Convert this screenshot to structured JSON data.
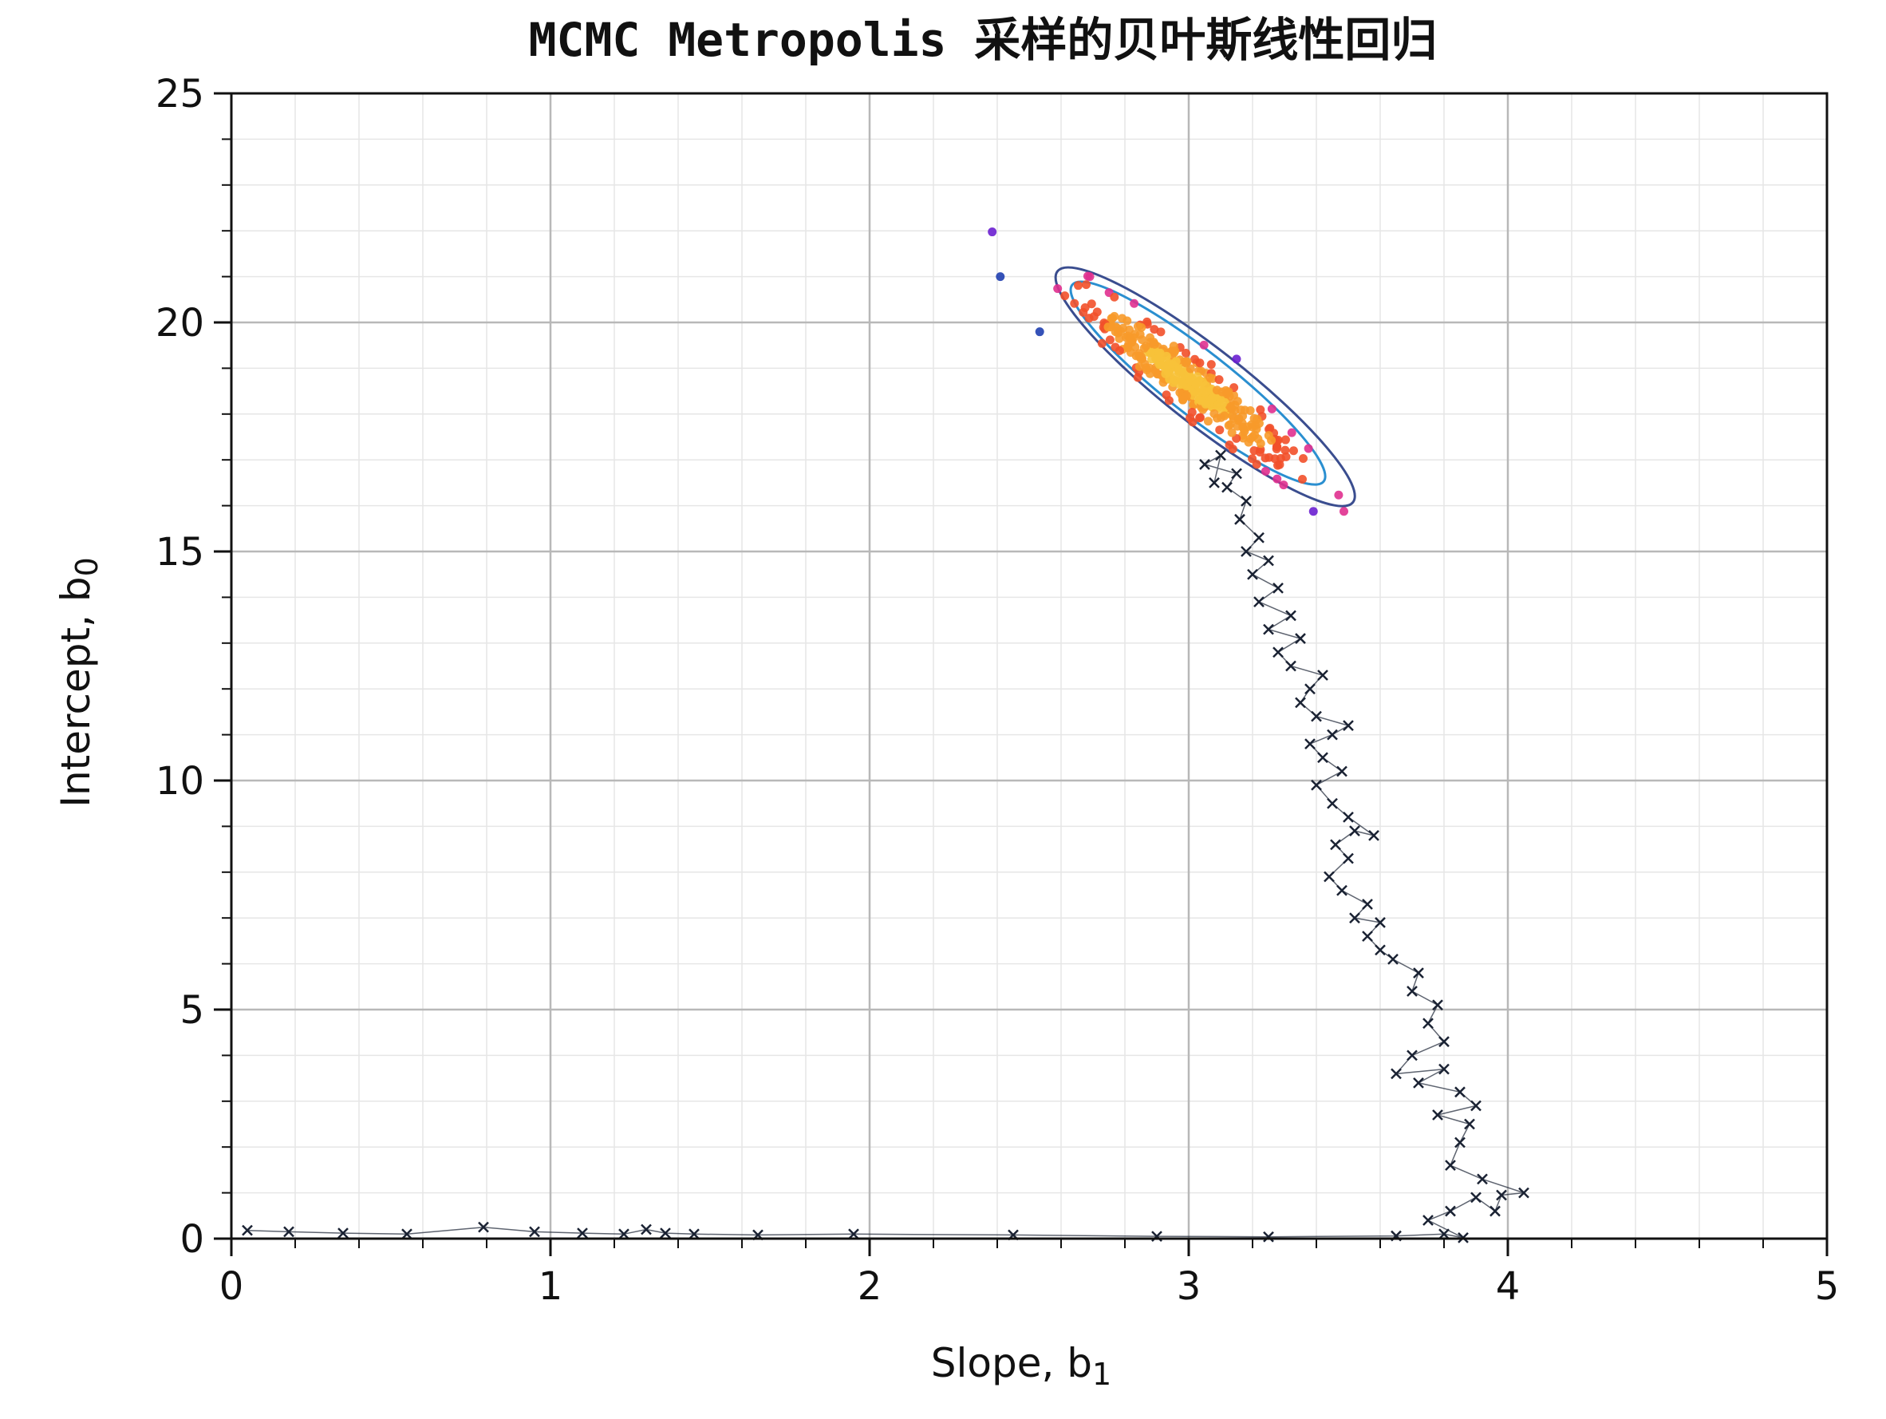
{
  "chart_data": {
    "type": "scatter",
    "title": "MCMC Metropolis 采样的贝叶斯线性回归",
    "xlabel": "Slope, b",
    "xlabel_sub": "1",
    "ylabel": "Intercept, b",
    "ylabel_sub": "0",
    "xlim": [
      0,
      5
    ],
    "ylim": [
      0,
      25
    ],
    "xticks": [
      0,
      1,
      2,
      3,
      4,
      5
    ],
    "yticks": [
      0,
      5,
      10,
      15,
      20,
      25
    ],
    "grid": true,
    "colors": {
      "trace": "#1a2233",
      "contour_outer": "#3a4d8f",
      "contour_inner": "#2a8fd0",
      "density": [
        "#1f3fb0",
        "#6a1fd0",
        "#e0308f",
        "#f2502a",
        "#f79a2a",
        "#f7c23a"
      ]
    },
    "series": [
      {
        "marker": "x",
        "points": [
          [
            0.05,
            0.18
          ],
          [
            0.18,
            0.15
          ],
          [
            0.35,
            0.12
          ],
          [
            0.55,
            0.1
          ],
          [
            0.79,
            0.25
          ],
          [
            0.95,
            0.15
          ],
          [
            1.1,
            0.12
          ],
          [
            1.23,
            0.1
          ],
          [
            1.3,
            0.2
          ],
          [
            1.36,
            0.12
          ],
          [
            1.45,
            0.1
          ],
          [
            1.65,
            0.08
          ],
          [
            1.95,
            0.1
          ],
          [
            2.45,
            0.08
          ],
          [
            2.9,
            0.05
          ],
          [
            3.25,
            0.04
          ],
          [
            3.65,
            0.06
          ],
          [
            3.8,
            0.1
          ],
          [
            3.86,
            0.02
          ],
          [
            3.75,
            0.4
          ],
          [
            3.82,
            0.6
          ],
          [
            3.9,
            0.9
          ],
          [
            3.96,
            0.6
          ],
          [
            3.98,
            0.95
          ],
          [
            4.05,
            1.0
          ],
          [
            3.92,
            1.3
          ],
          [
            3.82,
            1.6
          ],
          [
            3.85,
            2.1
          ],
          [
            3.88,
            2.5
          ],
          [
            3.78,
            2.7
          ],
          [
            3.9,
            2.9
          ],
          [
            3.85,
            3.2
          ],
          [
            3.72,
            3.4
          ],
          [
            3.8,
            3.7
          ],
          [
            3.65,
            3.6
          ],
          [
            3.7,
            4.0
          ],
          [
            3.8,
            4.3
          ],
          [
            3.75,
            4.7
          ],
          [
            3.78,
            5.1
          ],
          [
            3.7,
            5.4
          ],
          [
            3.72,
            5.8
          ],
          [
            3.64,
            6.1
          ],
          [
            3.6,
            6.3
          ],
          [
            3.56,
            6.6
          ],
          [
            3.6,
            6.9
          ],
          [
            3.52,
            7.0
          ],
          [
            3.56,
            7.3
          ],
          [
            3.48,
            7.6
          ],
          [
            3.44,
            7.9
          ],
          [
            3.5,
            8.3
          ],
          [
            3.46,
            8.6
          ],
          [
            3.52,
            8.9
          ],
          [
            3.58,
            8.8
          ],
          [
            3.5,
            9.2
          ],
          [
            3.45,
            9.5
          ],
          [
            3.4,
            9.9
          ],
          [
            3.48,
            10.2
          ],
          [
            3.42,
            10.5
          ],
          [
            3.38,
            10.8
          ],
          [
            3.45,
            11.0
          ],
          [
            3.5,
            11.2
          ],
          [
            3.4,
            11.4
          ],
          [
            3.35,
            11.7
          ],
          [
            3.38,
            12.0
          ],
          [
            3.42,
            12.3
          ],
          [
            3.32,
            12.5
          ],
          [
            3.28,
            12.8
          ],
          [
            3.35,
            13.1
          ],
          [
            3.25,
            13.3
          ],
          [
            3.32,
            13.6
          ],
          [
            3.22,
            13.9
          ],
          [
            3.28,
            14.2
          ],
          [
            3.2,
            14.5
          ],
          [
            3.25,
            14.8
          ],
          [
            3.18,
            15.0
          ],
          [
            3.22,
            15.3
          ],
          [
            3.16,
            15.7
          ],
          [
            3.18,
            16.1
          ],
          [
            3.12,
            16.4
          ],
          [
            3.15,
            16.7
          ],
          [
            3.05,
            16.9
          ],
          [
            3.1,
            17.1
          ],
          [
            3.08,
            16.5
          ]
        ]
      }
    ],
    "posterior": {
      "center": [
        3.0,
        18.7
      ],
      "sd": [
        0.045,
        0.75
      ],
      "correlation": -0.8
    }
  }
}
